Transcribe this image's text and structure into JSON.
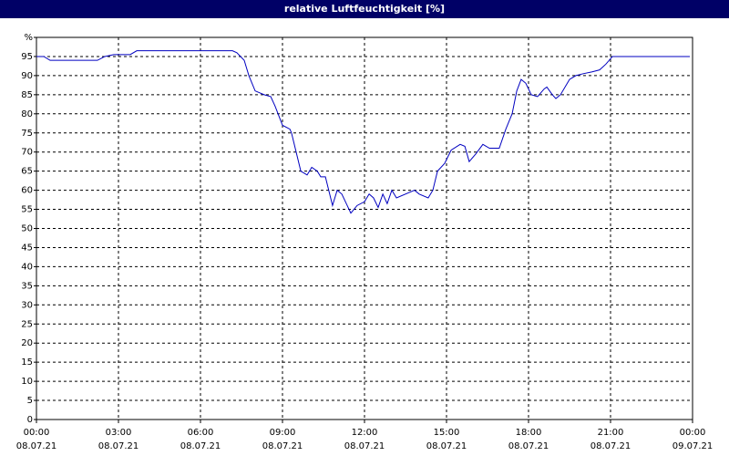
{
  "chart_data": {
    "type": "line",
    "title": "relative Luftfeuchtigkeit [%]",
    "x": [
      0,
      0.27,
      0.5,
      2.23,
      2.5,
      2.83,
      3.43,
      3.67,
      7.17,
      7.33,
      7.6,
      7.77,
      8.0,
      8.33,
      8.57,
      8.73,
      9.0,
      9.27,
      9.33,
      9.67,
      9.9,
      10.07,
      10.27,
      10.4,
      10.57,
      10.83,
      11.0,
      11.17,
      11.5,
      11.73,
      12.0,
      12.17,
      12.33,
      12.5,
      12.67,
      12.83,
      13.0,
      13.17,
      13.83,
      14.0,
      14.33,
      14.5,
      14.67,
      14.93,
      15.17,
      15.5,
      15.67,
      15.83,
      16.07,
      16.33,
      16.57,
      16.93,
      17.17,
      17.4,
      17.57,
      17.73,
      17.9,
      18.1,
      18.33,
      18.57,
      18.67,
      18.87,
      19.0,
      19.17,
      19.5,
      19.73,
      20.0,
      20.33,
      20.6,
      20.83,
      21.07,
      23.9
    ],
    "series": [
      {
        "name": "relative Luftfeuchtigkeit",
        "color": "#0000c0",
        "values": [
          95,
          95,
          94,
          94,
          95,
          95.5,
          95.5,
          96.5,
          96.5,
          96,
          94,
          90,
          86,
          85,
          84.5,
          82,
          77,
          76,
          75,
          65,
          64,
          66,
          65,
          63.5,
          63.5,
          56,
          60,
          59,
          54,
          56,
          57,
          59,
          58,
          55.5,
          59,
          56.5,
          60,
          58,
          60,
          59,
          58,
          60,
          65,
          67,
          70.5,
          72,
          71.5,
          67.5,
          69.5,
          72,
          71,
          71,
          76,
          80,
          86,
          89,
          88,
          85,
          84.5,
          86.5,
          87,
          85,
          84,
          85,
          89,
          90,
          90.5,
          91,
          91.5,
          93,
          95,
          95
        ]
      }
    ],
    "xlim": [
      0,
      24
    ],
    "xticks": [
      {
        "value": 0,
        "label": "00:00"
      },
      {
        "value": 3,
        "label": "03:00"
      },
      {
        "value": 6,
        "label": "06:00"
      },
      {
        "value": 9,
        "label": "09:00"
      },
      {
        "value": 12,
        "label": "12:00"
      },
      {
        "value": 15,
        "label": "15:00"
      },
      {
        "value": 18,
        "label": "18:00"
      },
      {
        "value": 21,
        "label": "21:00"
      },
      {
        "value": 24,
        "label": "00:00"
      }
    ],
    "xtick_dates": [
      "08.07.21",
      "08.07.21",
      "08.07.21",
      "08.07.21",
      "08.07.21",
      "08.07.21",
      "08.07.21",
      "08.07.21",
      "09.07.21"
    ],
    "ylim": [
      0,
      100
    ],
    "yticks": [
      0,
      5,
      10,
      15,
      20,
      25,
      30,
      35,
      40,
      45,
      50,
      55,
      60,
      65,
      70,
      75,
      80,
      85,
      90,
      95,
      {
        "value": 100,
        "label": "%"
      }
    ],
    "grid": true
  }
}
